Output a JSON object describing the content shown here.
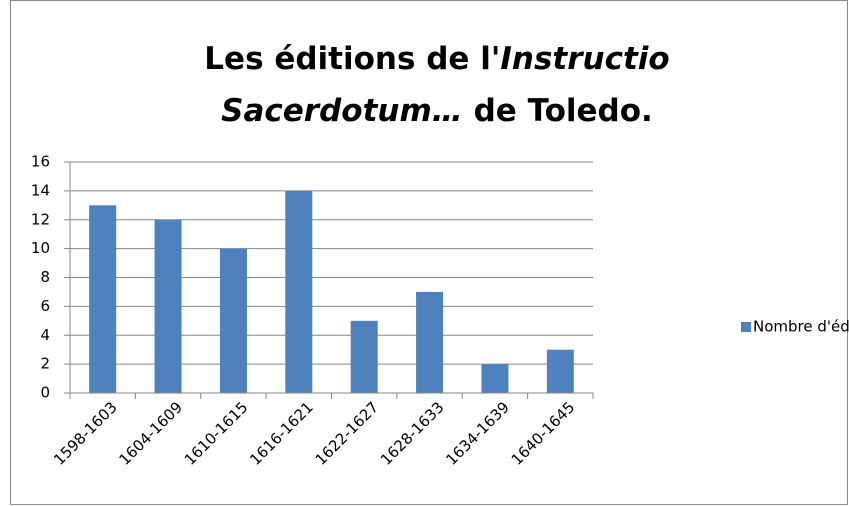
{
  "chart_data": {
    "type": "bar",
    "title": [
      [
        {
          "text": "Les éditions de l'",
          "italic": false
        },
        {
          "text": "Instructio",
          "italic": true
        }
      ],
      [
        {
          "text": "Sacerdotum…",
          "italic": true
        },
        {
          "text": " de Toledo.",
          "italic": false
        }
      ]
    ],
    "categories": [
      "1598-1603",
      "1604-1609",
      "1610-1615",
      "1616-1621",
      "1622-1627",
      "1628-1633",
      "1634-1639",
      "1640-1645"
    ],
    "series": [
      {
        "name": "Nombre d'éditions.",
        "color": "#4f81bd",
        "values": [
          13,
          12,
          10,
          14,
          5,
          7,
          2,
          3
        ]
      }
    ],
    "ylim": [
      0,
      16
    ],
    "yticks": [
      0,
      2,
      4,
      6,
      8,
      10,
      12,
      14,
      16
    ],
    "grid": true,
    "legend": "right"
  }
}
